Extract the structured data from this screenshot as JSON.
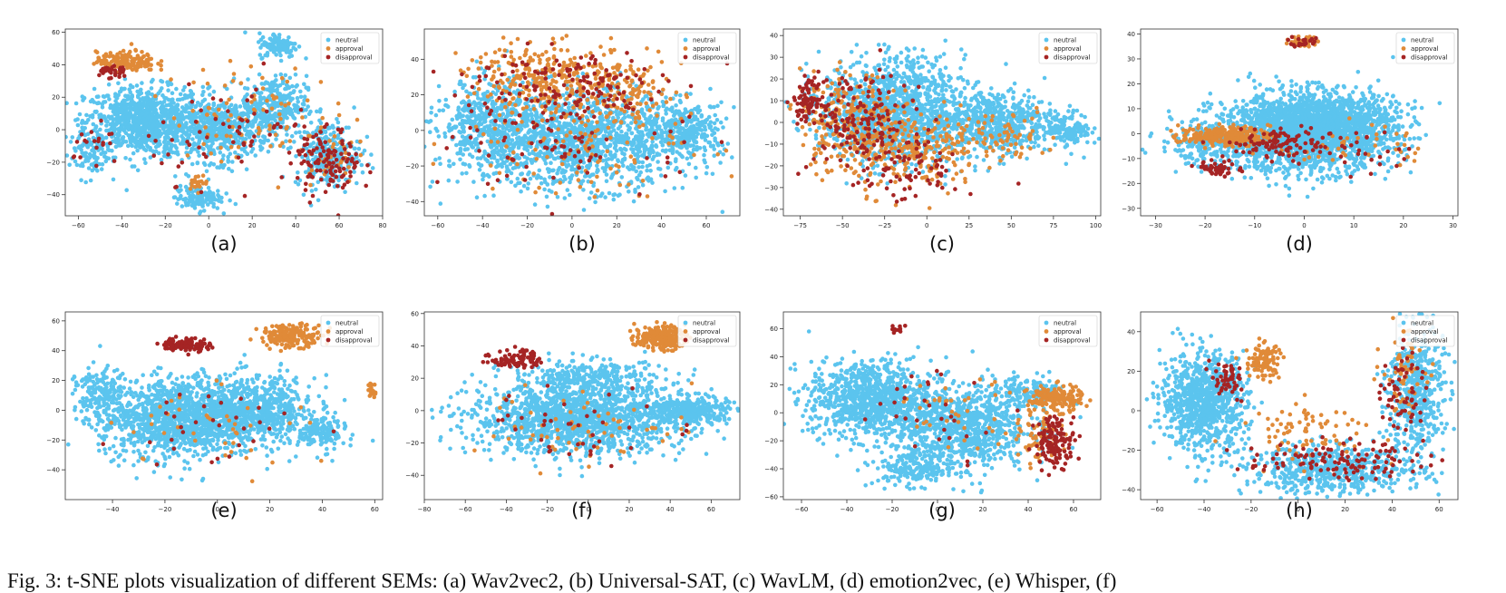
{
  "figure": {
    "caption_partial": "Fig. 3: t-SNE plots visualization of different SEMs: (a) Wav2vec2, (b) Universal-SAT, (c) WavLM, (d) emotion2vec, (e) Whisper, (f)"
  },
  "legend_labels": [
    "neutral",
    "approval",
    "disapproval"
  ],
  "colors": {
    "neutral": "#5bc4ee",
    "approval": "#e08a38",
    "disapproval": "#a52424"
  },
  "chart_data": [
    {
      "type": "scatter",
      "panel_label": "(a)",
      "xlim": [
        -66,
        80
      ],
      "ylim": [
        -53,
        62
      ],
      "xticks": [
        -60,
        -40,
        -20,
        0,
        20,
        40,
        60,
        80
      ],
      "yticks": [
        -40,
        -20,
        0,
        20,
        40,
        60
      ],
      "series": [
        {
          "name": "neutral",
          "clusters": [
            [
              -30,
              5,
              18,
              14,
              900
            ],
            [
              5,
              0,
              15,
              13,
              500
            ],
            [
              30,
              15,
              10,
              12,
              300
            ],
            [
              32,
              52,
              6,
              5,
              120
            ],
            [
              55,
              -15,
              10,
              14,
              260
            ],
            [
              -5,
              -42,
              7,
              5,
              120
            ],
            [
              -55,
              -15,
              6,
              10,
              80
            ]
          ]
        },
        {
          "name": "approval",
          "clusters": [
            [
              -38,
              42,
              9,
              4,
              160
            ],
            [
              -5,
              -32,
              3,
              3,
              25
            ],
            [
              20,
              10,
              25,
              20,
              90
            ],
            [
              55,
              -15,
              8,
              12,
              30
            ]
          ]
        },
        {
          "name": "disapproval",
          "clusters": [
            [
              -45,
              36,
              5,
              3,
              35
            ],
            [
              55,
              -20,
              10,
              14,
              120
            ],
            [
              10,
              0,
              25,
              20,
              60
            ],
            [
              -50,
              -10,
              8,
              10,
              20
            ]
          ]
        }
      ]
    },
    {
      "type": "scatter",
      "panel_label": "(b)",
      "xlim": [
        -66,
        75
      ],
      "ylim": [
        -48,
        57
      ],
      "xticks": [
        -60,
        -40,
        -20,
        0,
        20,
        40,
        60
      ],
      "yticks": [
        -40,
        -20,
        0,
        20,
        40
      ],
      "series": [
        {
          "name": "neutral",
          "clusters": [
            [
              0,
              -5,
              35,
              18,
              1500
            ],
            [
              50,
              0,
              12,
              10,
              300
            ],
            [
              -40,
              5,
              12,
              16,
              300
            ]
          ]
        },
        {
          "name": "approval",
          "clusters": [
            [
              -10,
              30,
              25,
              12,
              280
            ],
            [
              20,
              20,
              20,
              14,
              150
            ],
            [
              0,
              -10,
              35,
              18,
              100
            ]
          ]
        },
        {
          "name": "disapproval",
          "clusters": [
            [
              -5,
              25,
              30,
              14,
              150
            ],
            [
              0,
              -10,
              35,
              18,
              80
            ]
          ]
        }
      ]
    },
    {
      "type": "scatter",
      "panel_label": "(c)",
      "xlim": [
        -85,
        103
      ],
      "ylim": [
        -43,
        43
      ],
      "xticks": [
        -75,
        -50,
        -25,
        0,
        25,
        50,
        75,
        100
      ],
      "yticks": [
        -40,
        -30,
        -20,
        -10,
        0,
        10,
        20,
        30,
        40
      ],
      "series": [
        {
          "name": "neutral",
          "clusters": [
            [
              -20,
              5,
              28,
              16,
              1300
            ],
            [
              40,
              0,
              25,
              10,
              600
            ],
            [
              85,
              -3,
              8,
              5,
              120
            ]
          ]
        },
        {
          "name": "approval",
          "clusters": [
            [
              -45,
              0,
              20,
              15,
              260
            ],
            [
              -5,
              -15,
              25,
              12,
              200
            ],
            [
              40,
              -5,
              25,
              8,
              80
            ]
          ]
        },
        {
          "name": "disapproval",
          "clusters": [
            [
              -70,
              10,
              6,
              6,
              80
            ],
            [
              -40,
              0,
              20,
              16,
              150
            ],
            [
              -10,
              -20,
              20,
              12,
              80
            ]
          ]
        }
      ]
    },
    {
      "type": "scatter",
      "panel_label": "(d)",
      "xlim": [
        -33,
        31
      ],
      "ylim": [
        -33,
        42
      ],
      "xticks": [
        -30,
        -20,
        -10,
        0,
        10,
        20,
        30
      ],
      "yticks": [
        -30,
        -20,
        -10,
        0,
        10,
        20,
        30,
        40
      ],
      "series": [
        {
          "name": "neutral",
          "clusters": [
            [
              0,
              0,
              12,
              10,
              2000
            ],
            [
              5,
              5,
              9,
              8,
              600
            ],
            [
              -20,
              -5,
              6,
              5,
              150
            ]
          ]
        },
        {
          "name": "approval",
          "clusters": [
            [
              -16,
              -1,
              6,
              2.5,
              260
            ],
            [
              0,
              37,
              2,
              1.5,
              45
            ],
            [
              10,
              -5,
              10,
              6,
              40
            ]
          ]
        },
        {
          "name": "disapproval",
          "clusters": [
            [
              -17,
              -14,
              3,
              2,
              50
            ],
            [
              -5,
              -4,
              7,
              4,
              110
            ],
            [
              0,
              37,
              2,
              1.5,
              20
            ],
            [
              12,
              -8,
              8,
              6,
              30
            ]
          ]
        }
      ]
    },
    {
      "type": "scatter",
      "panel_label": "(e)",
      "xlim": [
        -58,
        63
      ],
      "ylim": [
        -60,
        66
      ],
      "xticks": [
        -40,
        -20,
        0,
        20,
        40,
        60
      ],
      "yticks": [
        -40,
        -20,
        0,
        20,
        40,
        60
      ],
      "series": [
        {
          "name": "neutral",
          "clusters": [
            [
              -15,
              -5,
              20,
              18,
              1300
            ],
            [
              15,
              0,
              15,
              15,
              600
            ],
            [
              40,
              -15,
              6,
              8,
              150
            ],
            [
              -45,
              10,
              6,
              12,
              150
            ]
          ]
        },
        {
          "name": "approval",
          "clusters": [
            [
              28,
              50,
              8,
              5,
              180
            ],
            [
              59,
              14,
              1.5,
              3,
              20
            ],
            [
              0,
              -10,
              25,
              20,
              40
            ]
          ]
        },
        {
          "name": "disapproval",
          "clusters": [
            [
              -12,
              44,
              6,
              3,
              110
            ],
            [
              0,
              -10,
              25,
              20,
              30
            ]
          ]
        }
      ]
    },
    {
      "type": "scatter",
      "panel_label": "(f)",
      "xlim": [
        -80,
        74
      ],
      "ylim": [
        -55,
        61
      ],
      "xticks": [
        -80,
        -60,
        -40,
        -20,
        0,
        20,
        40,
        60
      ],
      "yticks": [
        -40,
        -20,
        0,
        20,
        40,
        60
      ],
      "series": [
        {
          "name": "neutral",
          "clusters": [
            [
              -5,
              -5,
              35,
              14,
              1500
            ],
            [
              50,
              0,
              12,
              6,
              300
            ],
            [
              0,
              20,
              25,
              8,
              300
            ]
          ]
        },
        {
          "name": "approval",
          "clusters": [
            [
              35,
              45,
              8,
              5,
              200
            ],
            [
              0,
              -10,
              35,
              15,
              60
            ]
          ]
        },
        {
          "name": "disapproval",
          "clusters": [
            [
              -35,
              32,
              8,
              4,
              90
            ],
            [
              0,
              -10,
              35,
              15,
              40
            ]
          ]
        }
      ]
    },
    {
      "type": "scatter",
      "panel_label": "(g)",
      "xlim": [
        -68,
        72
      ],
      "ylim": [
        -62,
        72
      ],
      "xticks": [
        -60,
        -40,
        -20,
        0,
        20,
        40,
        60
      ],
      "yticks": [
        -60,
        -40,
        -20,
        0,
        20,
        40,
        60
      ],
      "series": [
        {
          "name": "neutral",
          "clusters": [
            [
              -30,
              10,
              18,
              18,
              900
            ],
            [
              10,
              -10,
              20,
              20,
              900
            ],
            [
              -10,
              -40,
              12,
              8,
              200
            ],
            [
              40,
              15,
              12,
              8,
              150
            ]
          ]
        },
        {
          "name": "approval",
          "clusters": [
            [
              52,
              10,
              8,
              6,
              160
            ],
            [
              45,
              -20,
              6,
              12,
              60
            ],
            [
              10,
              0,
              20,
              15,
              40
            ]
          ]
        },
        {
          "name": "disapproval",
          "clusters": [
            [
              52,
              -20,
              6,
              12,
              130
            ],
            [
              -18,
              60,
              2,
              2,
              10
            ],
            [
              0,
              0,
              25,
              20,
              30
            ]
          ]
        }
      ]
    },
    {
      "type": "scatter",
      "panel_label": "(h)",
      "xlim": [
        -67,
        68
      ],
      "ylim": [
        -45,
        50
      ],
      "xticks": [
        -60,
        -40,
        -20,
        0,
        20,
        40,
        60
      ],
      "yticks": [
        -40,
        -20,
        0,
        20,
        40
      ],
      "series": [
        {
          "name": "neutral",
          "clusters": [
            [
              -40,
              5,
              12,
              16,
              900
            ],
            [
              15,
              -30,
              25,
              8,
              600
            ],
            [
              50,
              10,
              8,
              22,
              500
            ]
          ]
        },
        {
          "name": "approval",
          "clusters": [
            [
              -15,
              25,
              5,
              6,
              100
            ],
            [
              5,
              -10,
              20,
              10,
              80
            ],
            [
              45,
              20,
              6,
              14,
              60
            ]
          ]
        },
        {
          "name": "disapproval",
          "clusters": [
            [
              -30,
              15,
              5,
              6,
              50
            ],
            [
              15,
              -25,
              25,
              6,
              120
            ],
            [
              45,
              10,
              6,
              15,
              60
            ]
          ]
        }
      ]
    }
  ]
}
